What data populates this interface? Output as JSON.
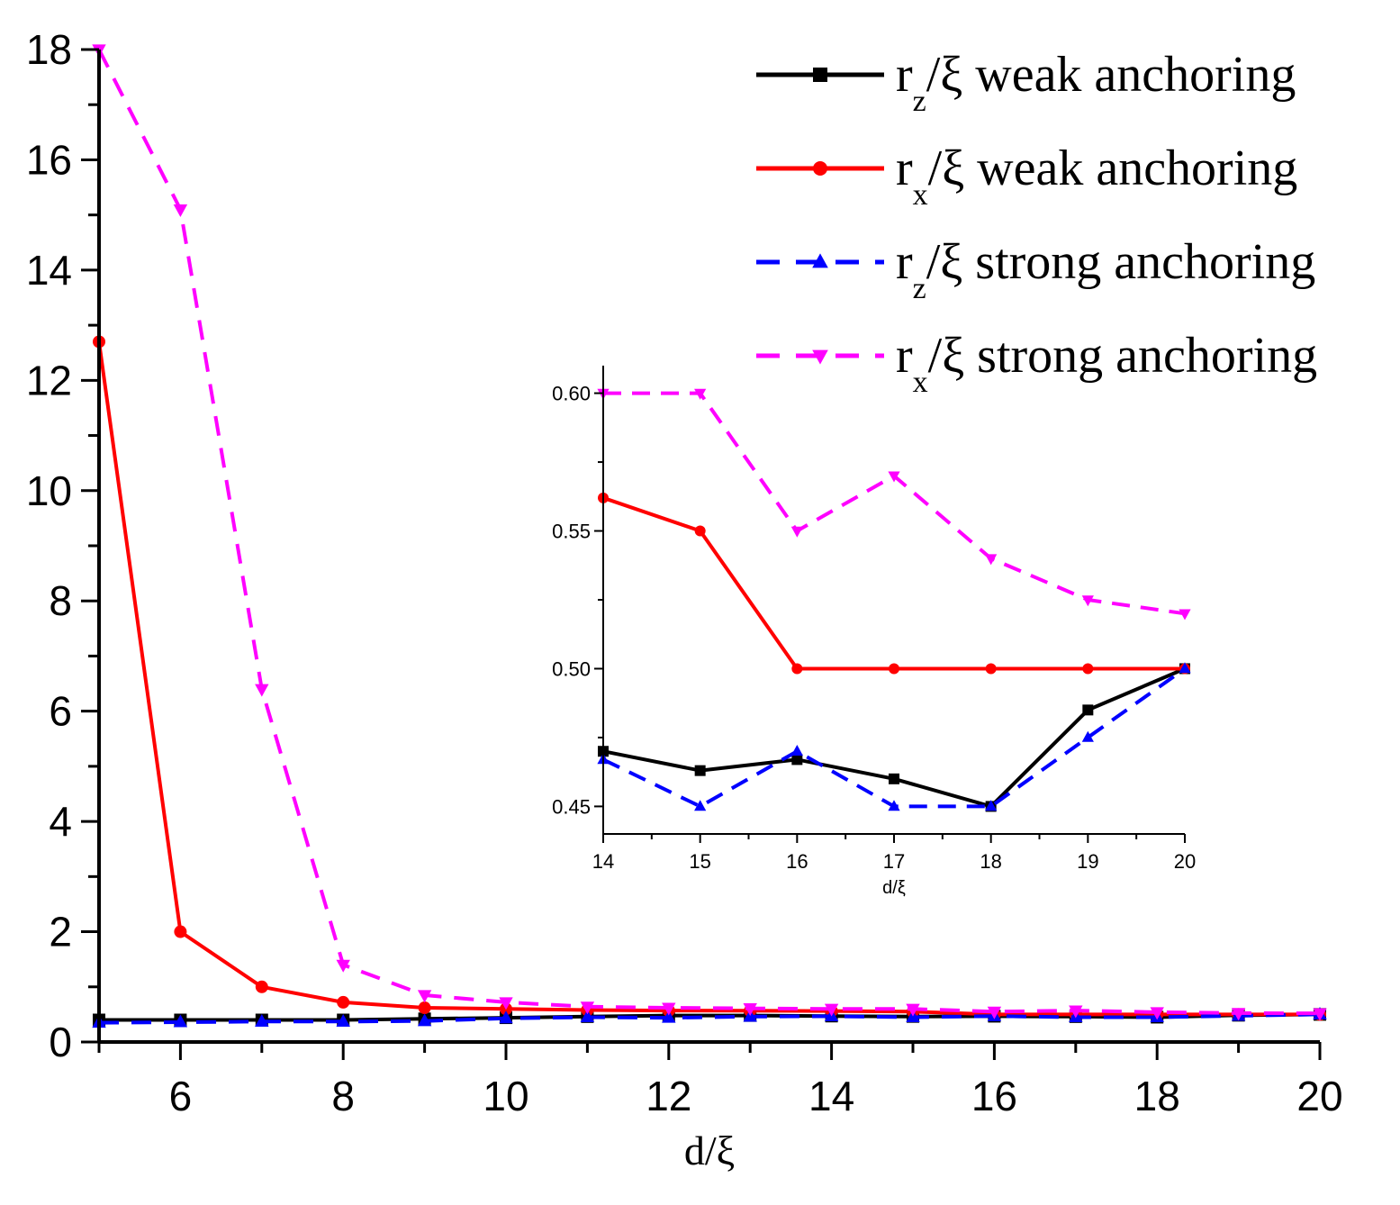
{
  "chart_data": [
    {
      "type": "line",
      "title": "",
      "xlabel": "d/ξ",
      "ylabel": "",
      "xlim": [
        5,
        20
      ],
      "ylim": [
        0,
        18
      ],
      "xticks": [
        "6",
        "8",
        "10",
        "12",
        "14",
        "16",
        "18",
        "20"
      ],
      "yticks": [
        "0",
        "2",
        "4",
        "6",
        "8",
        "10",
        "12",
        "14",
        "16",
        "18"
      ],
      "x": [
        5,
        6,
        7,
        8,
        9,
        10,
        11,
        12,
        13,
        14,
        15,
        16,
        17,
        18,
        19,
        20
      ],
      "legend_position": "top-right",
      "series": [
        {
          "key": "rz_weak",
          "name": "r/ξ weak anchoring",
          "name_subscript": "z",
          "name_prefix": "r",
          "name_suffix": "/ξ weak anchoring",
          "color": "#000000",
          "dash": "solid",
          "marker": "square",
          "values": [
            0.4,
            0.4,
            0.4,
            0.4,
            0.42,
            0.44,
            0.46,
            0.48,
            0.48,
            0.47,
            0.463,
            0.467,
            0.46,
            0.45,
            0.485,
            0.5
          ]
        },
        {
          "key": "rx_weak",
          "name": "r/ξ weak anchoring",
          "name_subscript": "x",
          "name_prefix": "r",
          "name_suffix": "/ξ weak anchoring",
          "color": "#ff0000",
          "dash": "solid",
          "marker": "circle",
          "values": [
            12.7,
            2.0,
            1.0,
            0.72,
            0.62,
            0.6,
            0.58,
            0.57,
            0.566,
            0.562,
            0.55,
            0.5,
            0.5,
            0.5,
            0.5,
            0.5
          ]
        },
        {
          "key": "rz_strong",
          "name": "r/ξ strong anchoring",
          "name_subscript": "z",
          "name_prefix": "r",
          "name_suffix": "/ξ strong anchoring",
          "color": "#0000ff",
          "dash": "dashed",
          "marker": "triangle-up",
          "values": [
            0.35,
            0.36,
            0.37,
            0.37,
            0.38,
            0.43,
            0.45,
            0.44,
            0.46,
            0.467,
            0.45,
            0.47,
            0.45,
            0.45,
            0.475,
            0.5
          ]
        },
        {
          "key": "rx_strong",
          "name": "r/ξ strong anchoring",
          "name_subscript": "x",
          "name_prefix": "r",
          "name_suffix": "/ξ strong anchoring",
          "color": "#ff00ff",
          "dash": "dashed",
          "marker": "triangle-down",
          "values": [
            18.0,
            15.1,
            6.4,
            1.4,
            0.85,
            0.72,
            0.64,
            0.62,
            0.61,
            0.6,
            0.6,
            0.55,
            0.57,
            0.54,
            0.525,
            0.52
          ]
        }
      ]
    },
    {
      "type": "line",
      "title": "",
      "role": "inset",
      "xlabel": "d/ξ",
      "ylabel": "",
      "xlim": [
        14,
        20
      ],
      "ylim": [
        0.44,
        0.61
      ],
      "xticks": [
        "14",
        "15",
        "16",
        "17",
        "18",
        "19",
        "20"
      ],
      "yticks": [
        "0.45",
        "0.50",
        "0.55",
        "0.60"
      ],
      "x": [
        14,
        15,
        16,
        17,
        18,
        19,
        20
      ],
      "series": [
        {
          "key": "rz_weak",
          "color": "#000000",
          "dash": "solid",
          "marker": "square",
          "values": [
            0.47,
            0.463,
            0.467,
            0.46,
            0.45,
            0.485,
            0.5
          ]
        },
        {
          "key": "rx_weak",
          "color": "#ff0000",
          "dash": "solid",
          "marker": "circle",
          "values": [
            0.562,
            0.55,
            0.5,
            0.5,
            0.5,
            0.5,
            0.5
          ]
        },
        {
          "key": "rz_strong",
          "color": "#0000ff",
          "dash": "dashed",
          "marker": "triangle-up",
          "values": [
            0.467,
            0.45,
            0.47,
            0.45,
            0.45,
            0.475,
            0.5
          ]
        },
        {
          "key": "rx_strong",
          "color": "#ff00ff",
          "dash": "dashed",
          "marker": "triangle-down",
          "values": [
            0.6,
            0.6,
            0.55,
            0.57,
            0.54,
            0.525,
            0.52
          ]
        }
      ]
    }
  ]
}
